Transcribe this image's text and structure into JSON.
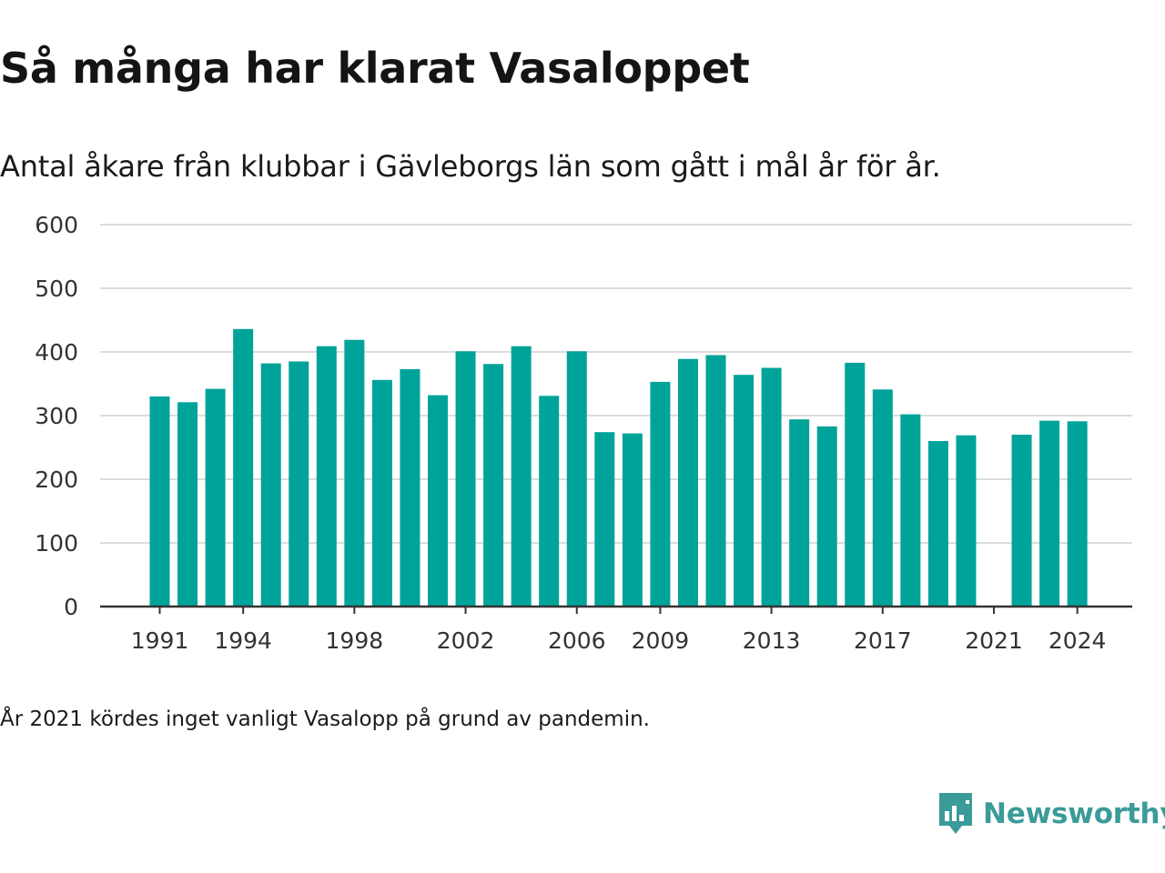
{
  "title": "Så många har klarat Vasaloppet",
  "subtitle": "Antal åkare från klubbar i Gävleborgs län som gått i mål år för år.",
  "note": "År 2021 kördes inget vanligt Vasalopp på grund av pandemin.",
  "brand": {
    "name": "Newsworthy",
    "color": "#3b9b99",
    "icon": "newsworthy-logo-icon"
  },
  "colors": {
    "bar": "#00a39a",
    "grid": "#dcdcdc",
    "axis": "#333333",
    "text": "#333333"
  },
  "chart_data": {
    "type": "bar",
    "title": "Så många har klarat Vasaloppet",
    "subtitle": "Antal åkare från klubbar i Gävleborgs län som gått i mål år för år.",
    "xlabel": "",
    "ylabel": "",
    "ylim": [
      0,
      600
    ],
    "yticks": [
      0,
      100,
      200,
      300,
      400,
      500,
      600
    ],
    "x_tick_labels": [
      "1991",
      "1994",
      "1998",
      "2002",
      "2006",
      "2009",
      "2013",
      "2017",
      "2021",
      "2024"
    ],
    "grid": true,
    "legend": "none",
    "categories": [
      "1991",
      "1992",
      "1993",
      "1994",
      "1995",
      "1996",
      "1997",
      "1998",
      "1999",
      "2000",
      "2001",
      "2002",
      "2003",
      "2004",
      "2005",
      "2006",
      "2007",
      "2008",
      "2009",
      "2010",
      "2011",
      "2012",
      "2013",
      "2014",
      "2015",
      "2016",
      "2017",
      "2018",
      "2019",
      "2020",
      "2021",
      "2022",
      "2023",
      "2024"
    ],
    "values": [
      330,
      321,
      342,
      436,
      382,
      385,
      409,
      419,
      356,
      373,
      332,
      401,
      381,
      409,
      331,
      401,
      274,
      272,
      353,
      389,
      395,
      364,
      375,
      294,
      283,
      383,
      341,
      302,
      260,
      269,
      null,
      270,
      292,
      291
    ]
  }
}
